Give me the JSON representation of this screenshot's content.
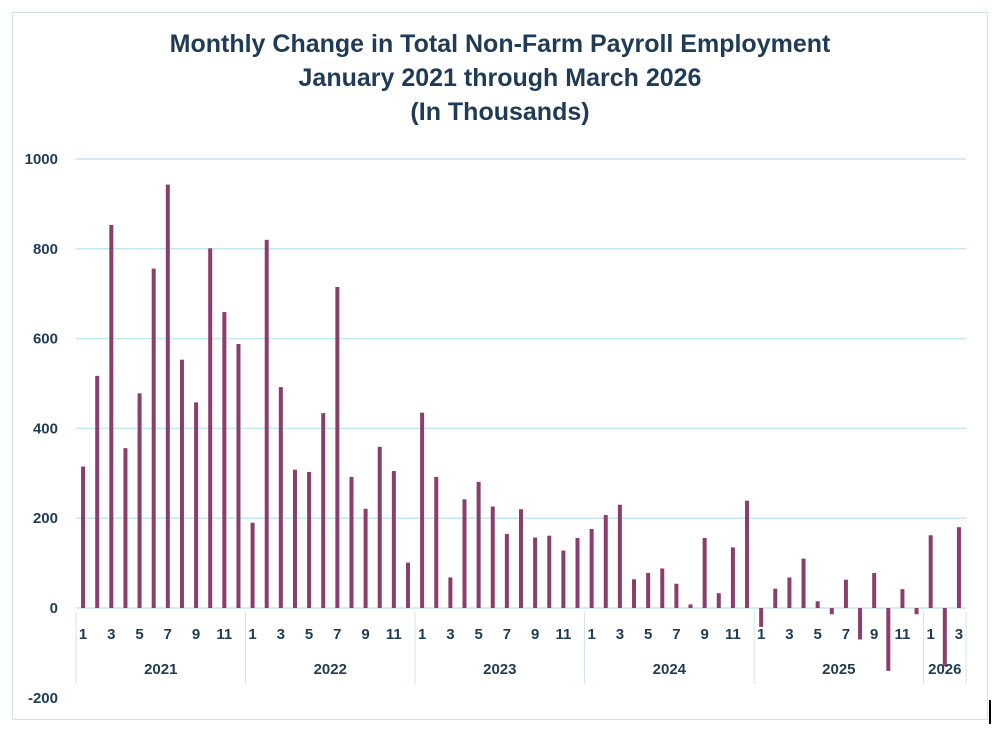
{
  "chart_data": {
    "type": "bar",
    "title_lines": [
      "Monthly Change in Total Non-Farm Payroll Employment",
      "January 2021 through March 2026",
      "(In Thousands)"
    ],
    "xlabel": "",
    "ylabel": "",
    "ylim": [
      -200,
      1000
    ],
    "yticks": [
      1000,
      800,
      600,
      400,
      200,
      0,
      -200
    ],
    "grid": true,
    "bar_color": "#8b3d6b",
    "grid_color": "#c5e6f3",
    "years": [
      {
        "label": "2021",
        "months": 12
      },
      {
        "label": "2022",
        "months": 12
      },
      {
        "label": "2023",
        "months": 12
      },
      {
        "label": "2024",
        "months": 12
      },
      {
        "label": "2025",
        "months": 12
      },
      {
        "label": "2026",
        "months": 3
      }
    ],
    "month_labels": [
      "1",
      "",
      "3",
      "",
      "5",
      "",
      "7",
      "",
      "9",
      "",
      "11",
      ""
    ],
    "month_labels_2026": [
      "1",
      "",
      "3"
    ],
    "series": [
      {
        "values": [
          315,
          517,
          853,
          356,
          478,
          756,
          943,
          553,
          458,
          801,
          659,
          588,
          190,
          820,
          492,
          308,
          303,
          434,
          715,
          292,
          221,
          359,
          305,
          101,
          435,
          292,
          68,
          242,
          281,
          226,
          165,
          220,
          157,
          161,
          128,
          156,
          176,
          207,
          230,
          64,
          78,
          88,
          54,
          8,
          156,
          33,
          135,
          239,
          -42,
          43,
          68,
          110,
          15,
          -14,
          63,
          -70,
          78,
          -140,
          42,
          -14,
          162,
          -130,
          180
        ]
      }
    ]
  }
}
